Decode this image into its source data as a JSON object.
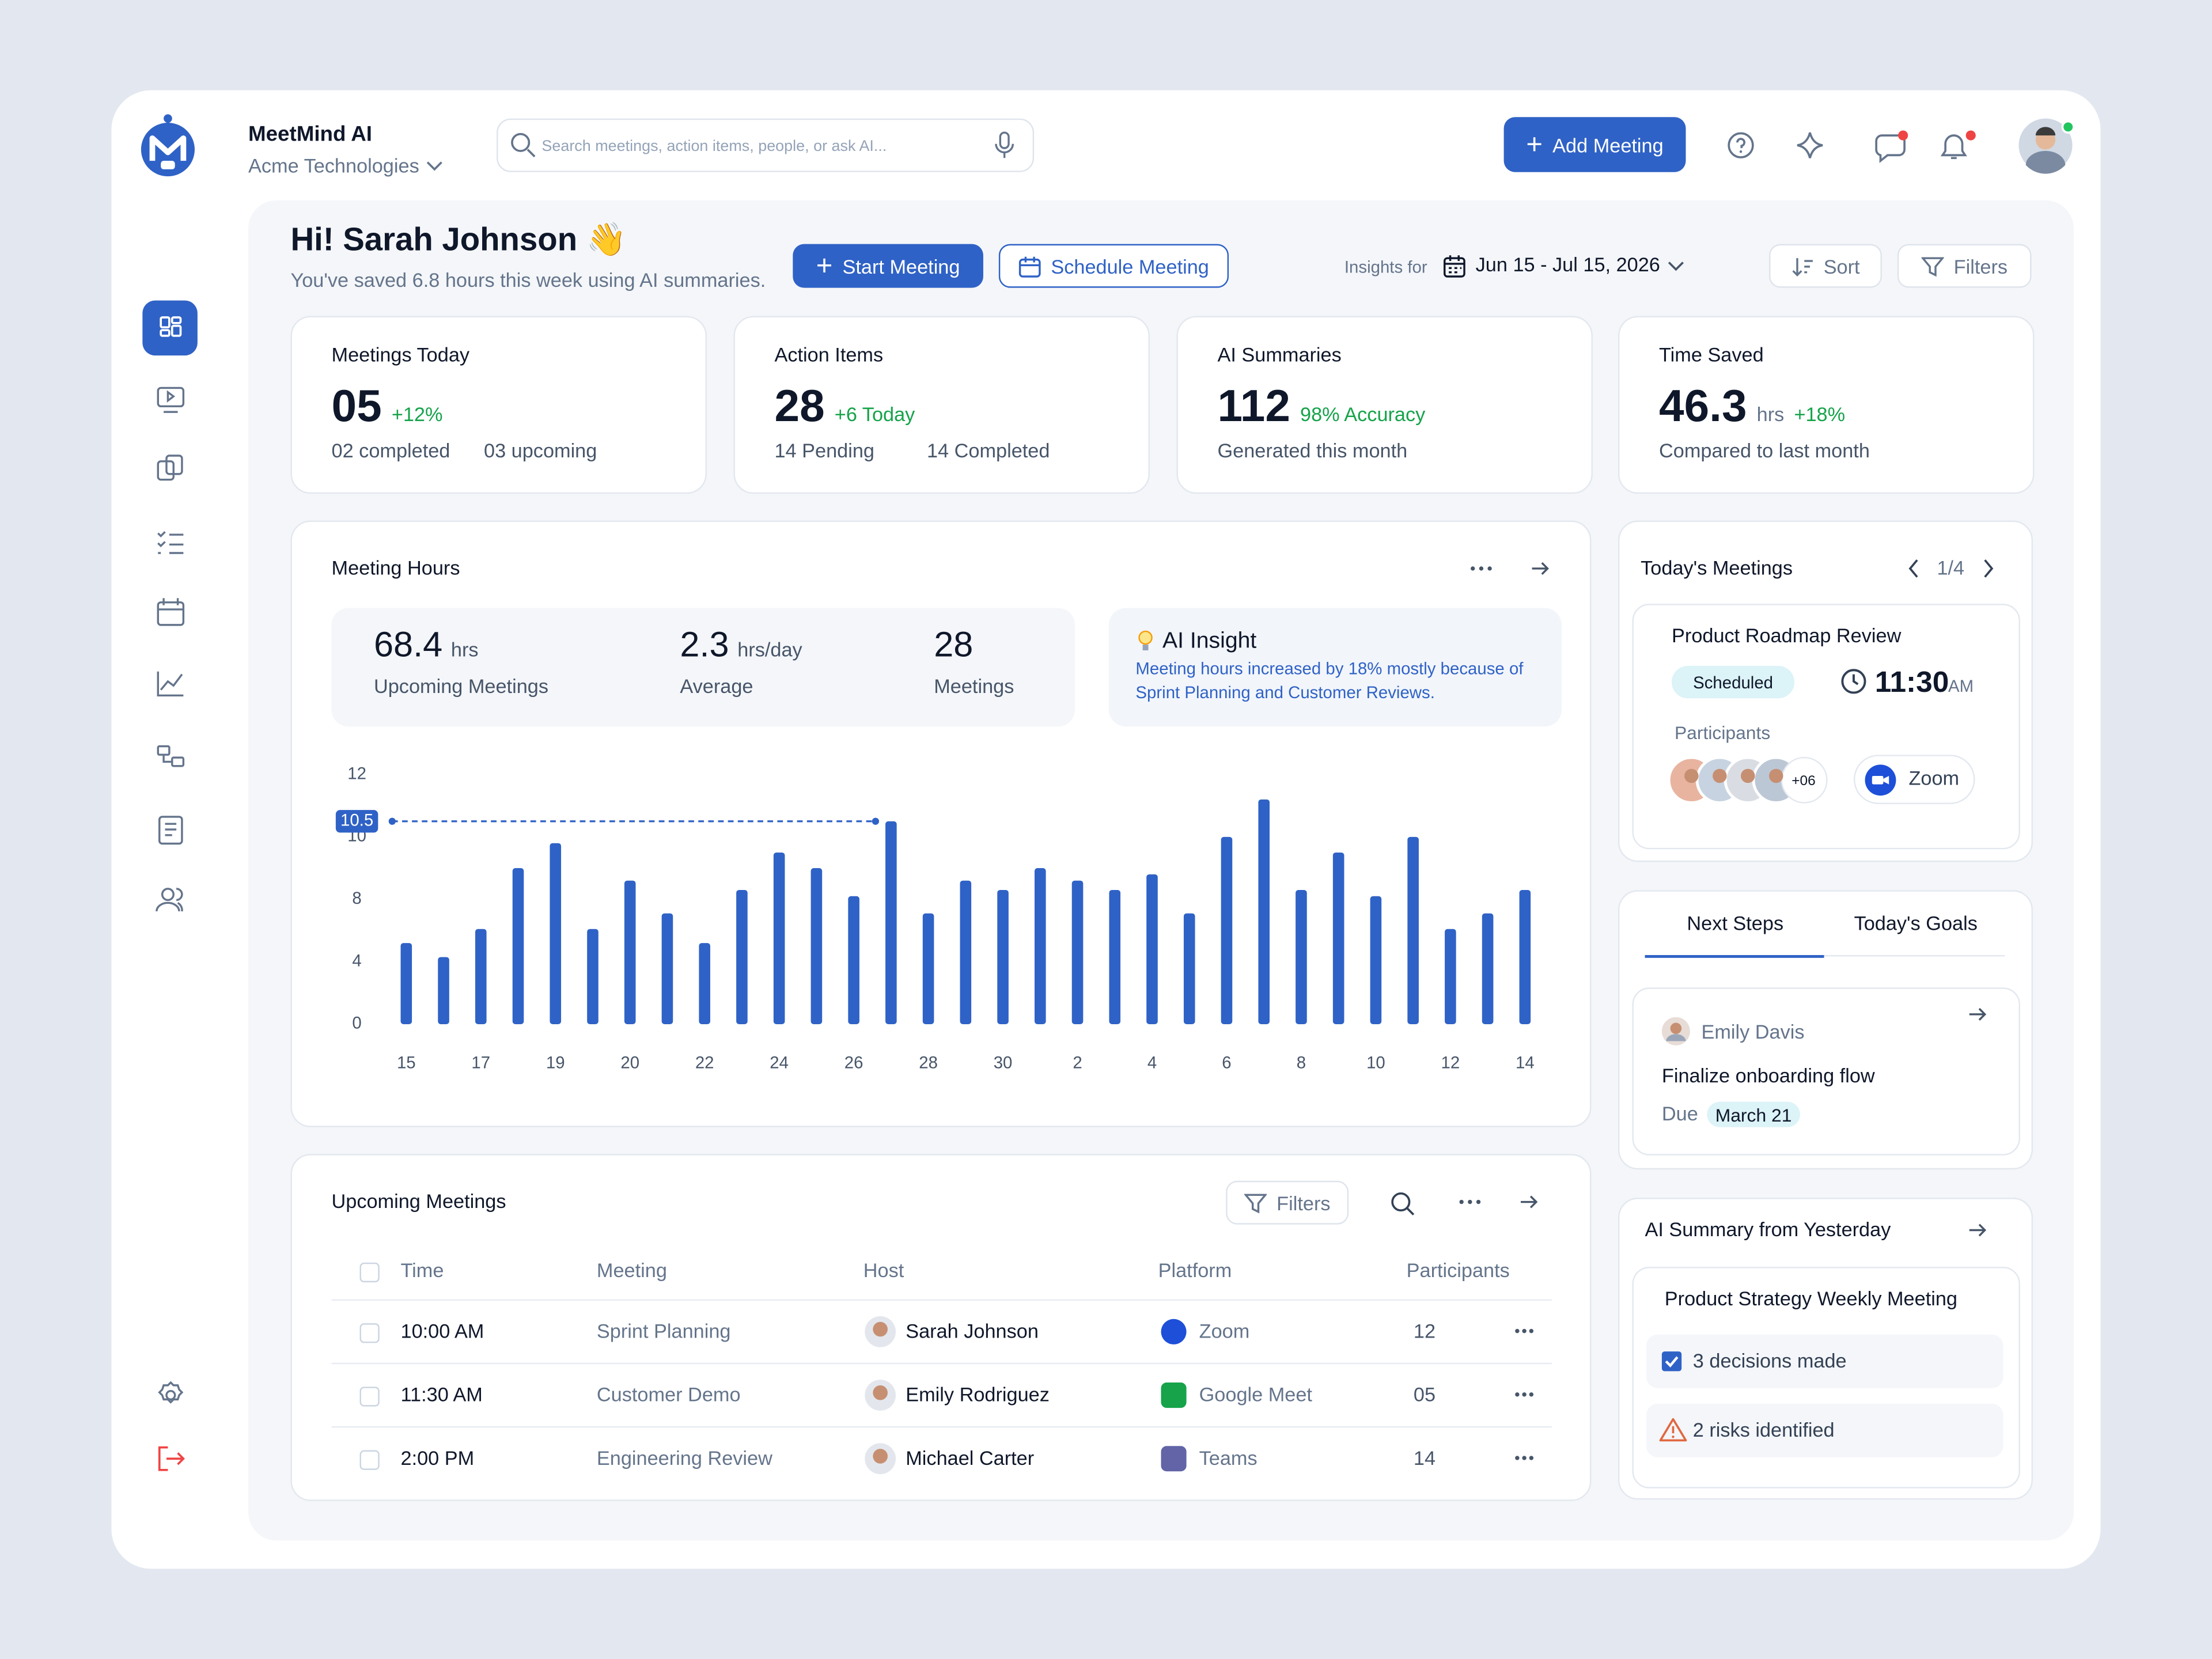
{
  "brand": {
    "name": "MeetMind AI",
    "org": "Acme Technologies"
  },
  "search_placeholder": "Search meetings, action items, people, or ask AI...",
  "add_meeting": "Add Meeting",
  "greeting": {
    "title": "Hi! Sarah Johnson 👋",
    "subtitle": "You've saved 6.8 hours this week using AI summaries."
  },
  "actions": {
    "start": "Start Meeting",
    "schedule": "Schedule Meeting",
    "insights_label": "Insights for",
    "date_range": "Jun 15 - Jul 15, 2026",
    "sort": "Sort",
    "filters": "Filters"
  },
  "stats": [
    {
      "label": "Meetings Today",
      "value": "05",
      "delta": "+12%",
      "subs": [
        "02 completed",
        "03 upcoming"
      ]
    },
    {
      "label": "Action Items",
      "value": "28",
      "delta": "+6 Today",
      "subs": [
        "14 Pending",
        "14 Completed"
      ]
    },
    {
      "label": "AI Summaries",
      "value": "112",
      "delta": "98% Accuracy",
      "subs": [
        "Generated this month"
      ]
    },
    {
      "label": "Time Saved",
      "value": "46.3",
      "unit": "hrs",
      "delta": "+18%",
      "subs": [
        "Compared to last month"
      ]
    }
  ],
  "meeting_hours": {
    "title": "Meeting Hours",
    "summary": [
      {
        "value": "68.4",
        "unit": "hrs",
        "label": "Upcoming Meetings"
      },
      {
        "value": "2.3",
        "unit": "hrs/day",
        "label": "Average"
      },
      {
        "value": "28",
        "label": "Meetings"
      }
    ],
    "insight": {
      "title": "AI Insight",
      "text": "Meeting hours increased by 18% mostly because of Sprint Planning and Customer Reviews."
    }
  },
  "chart_data": {
    "type": "bar",
    "color": "#2f62c6",
    "categories": [
      "15",
      null,
      "17",
      null,
      "19",
      null,
      "20",
      null,
      "22",
      null,
      "24",
      null,
      "26",
      null,
      "28",
      null,
      "30",
      null,
      "2",
      null,
      "4",
      null,
      "6",
      null,
      "8",
      null,
      "10",
      null,
      "12",
      null,
      "14"
    ],
    "values": [
      5.2,
      4.3,
      6.1,
      9.0,
      9.8,
      6.1,
      8.6,
      7.1,
      5.2,
      8.3,
      9.5,
      9.0,
      8.1,
      10.5,
      7.1,
      8.6,
      8.3,
      9.0,
      8.6,
      8.3,
      8.8,
      7.1,
      10.0,
      11.2,
      8.3,
      9.5,
      8.1,
      10.0,
      6.1,
      7.1,
      8.3
    ],
    "value_labels": [
      null,
      null,
      null,
      null,
      null,
      null,
      null,
      null,
      null,
      null,
      null,
      null,
      null,
      "10.5",
      null,
      null,
      null,
      null,
      null,
      null,
      null,
      null,
      null,
      null,
      null,
      null,
      null,
      null,
      null,
      null,
      null
    ],
    "ylim": [
      0,
      12
    ],
    "yticks": [
      0,
      4,
      8,
      10,
      12
    ]
  },
  "upcoming": {
    "title": "Upcoming Meetings",
    "filters": "Filters",
    "columns": [
      "Time",
      "Meeting",
      "Host",
      "Platform",
      "Participants"
    ],
    "rows": [
      [
        "10:00 AM",
        "Sprint Planning",
        "Sarah Johnson",
        "Zoom",
        "12"
      ],
      [
        "11:30 AM",
        "Customer Demo",
        "Emily Rodriguez",
        "Google Meet",
        "05"
      ],
      [
        "2:00 PM",
        "Engineering Review",
        "Michael Carter",
        "Teams",
        "14"
      ]
    ]
  },
  "today_meetings": {
    "title": "Today's Meetings",
    "pager": "1/4",
    "meeting": "Product Roadmap Review",
    "status": "Scheduled",
    "time": "11:30",
    "ampm": "AM",
    "participants_label": "Participants",
    "more": "+06",
    "platform": "Zoom"
  },
  "next_steps": {
    "tabs": [
      "Next Steps",
      "Today's Goals"
    ],
    "person": "Emily Davis",
    "task": "Finalize onboarding flow",
    "due_label": "Due",
    "due": "March 21"
  },
  "ai_summary": {
    "title": "AI Summary from Yesterday",
    "meeting": "Product Strategy Weekly Meeting",
    "items": [
      "3 decisions made",
      "2 risks identified"
    ]
  }
}
